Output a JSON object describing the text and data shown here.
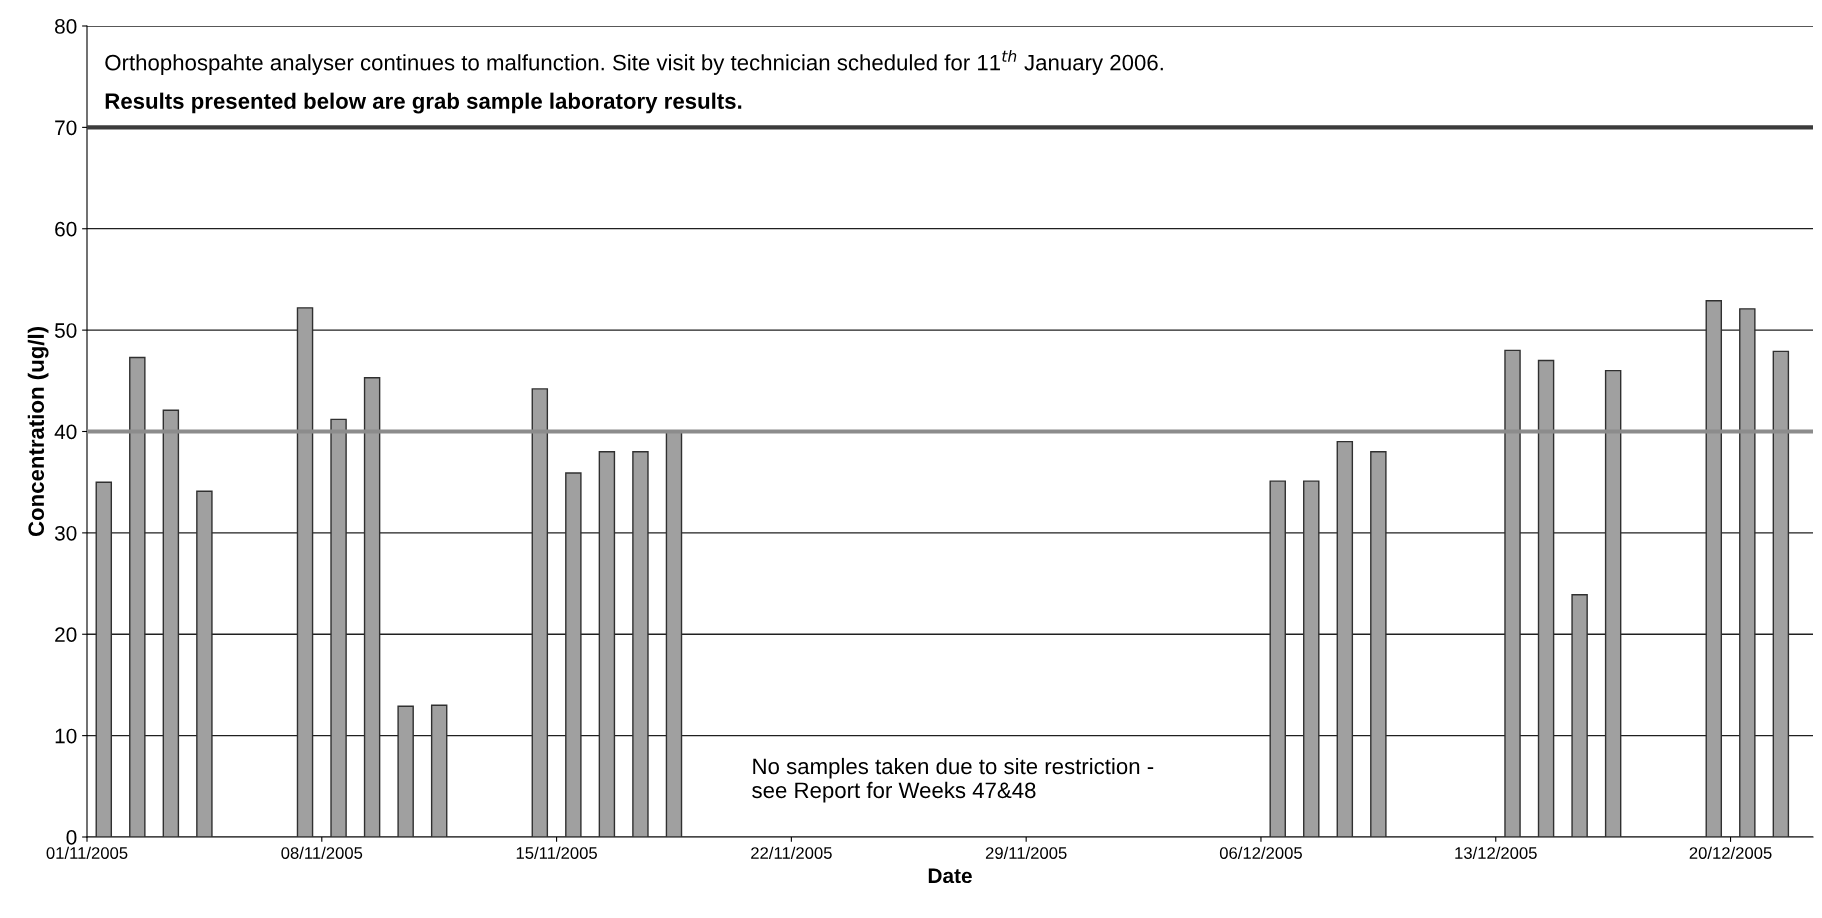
{
  "chart_data": {
    "type": "bar",
    "xlabel": "Date",
    "ylabel": "Concentration (ug/l)",
    "x": [
      "2005-11-01T12:00",
      "2005-11-02T12:00",
      "2005-11-03T12:00",
      "2005-11-04T12:00",
      "2005-11-07T12:00",
      "2005-11-08T12:00",
      "2005-11-09T12:00",
      "2005-11-10T12:00",
      "2005-11-11T12:00",
      "2005-11-14T12:00",
      "2005-11-15T12:00",
      "2005-11-16T12:00",
      "2005-11-17T12:00",
      "2005-11-18T12:00",
      "2005-12-06T12:00",
      "2005-12-07T12:00",
      "2005-12-08T12:00",
      "2005-12-09T12:00",
      "2005-12-13T12:00",
      "2005-12-14T12:00",
      "2005-12-15T12:00",
      "2005-12-16T12:00",
      "2005-12-19T12:00",
      "2005-12-20T12:00",
      "2005-12-21T12:00"
    ],
    "values": [
      35.0,
      47.3,
      42.1,
      34.1,
      52.2,
      41.2,
      45.3,
      12.9,
      13.0,
      44.2,
      35.9,
      38.0,
      38.0,
      40.0,
      35.1,
      35.1,
      39.0,
      38.0,
      48.0,
      47.0,
      23.9,
      46.0,
      52.9,
      52.1,
      47.9
    ],
    "color": "#a0a0a0",
    "xlim": [
      "2005-11-01",
      "2005-12-22T11:00"
    ],
    "xticks": [
      {
        "value": "2005-11-01",
        "label": "01/11/2005"
      },
      {
        "value": "2005-11-08",
        "label": "08/11/2005"
      },
      {
        "value": "2005-11-15",
        "label": "15/11/2005"
      },
      {
        "value": "2005-11-22",
        "label": "22/11/2005"
      },
      {
        "value": "2005-11-29",
        "label": "29/11/2005"
      },
      {
        "value": "2005-12-06",
        "label": "06/12/2005"
      },
      {
        "value": "2005-12-13",
        "label": "13/12/2005"
      },
      {
        "value": "2005-12-20",
        "label": "20/12/2005"
      }
    ],
    "ylim": [
      0,
      80
    ],
    "yticks": [
      0,
      10,
      20,
      30,
      40,
      50,
      60,
      70,
      80
    ],
    "grid": "y",
    "ref_lines": [
      {
        "axis": "y",
        "value": 40,
        "color": "#8c8c8c"
      },
      {
        "axis": "y",
        "value": 70,
        "color": "#3c3c3c"
      }
    ],
    "annotations": [
      "Orthophospahte analyser continues to malfunction. Site visit by technician scheduled for 11$^{th}$ January 2006.",
      "Results presented below are grab sample laboratory results.",
      "No samples taken due to site restriction -\nsee Report for Weeks 47&48"
    ]
  }
}
